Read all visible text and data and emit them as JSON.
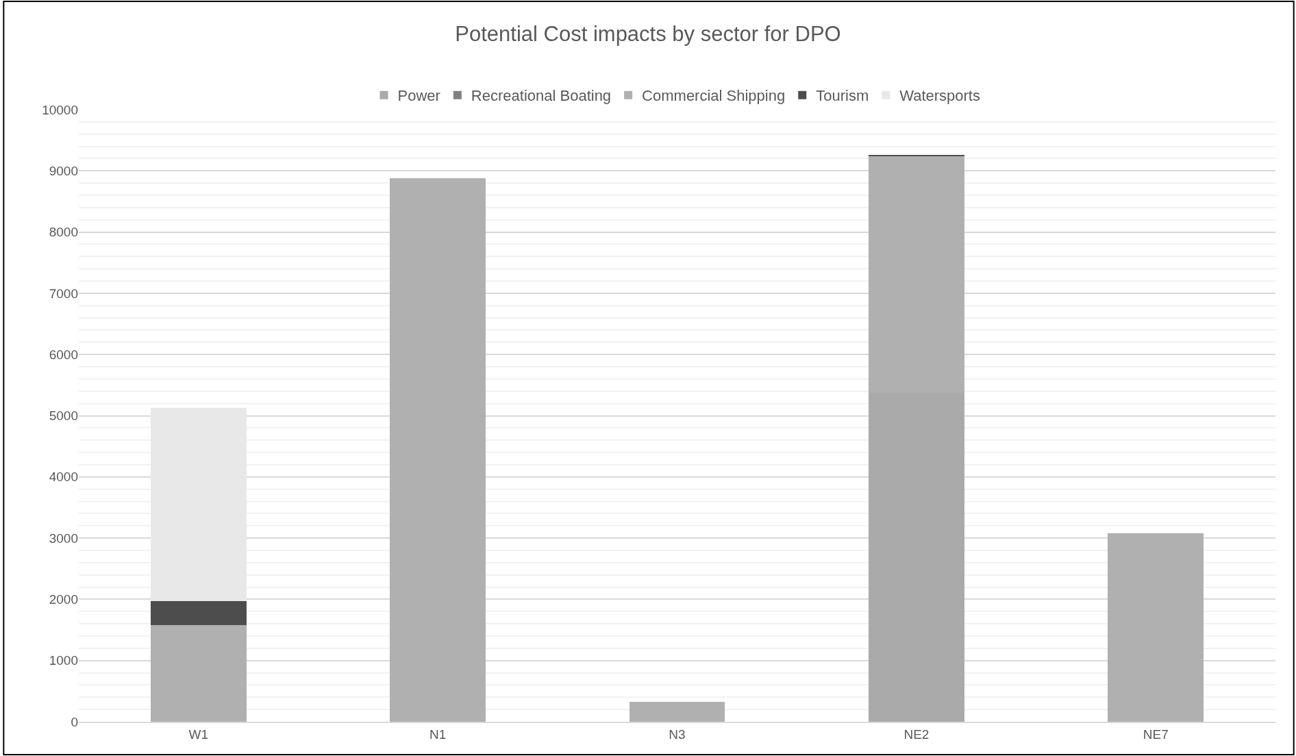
{
  "chart_data": {
    "type": "bar",
    "title": "Potential Cost impacts by sector for DPO",
    "stacked": true,
    "legend": "top",
    "grid": "y",
    "categories": [
      "W1",
      "N1",
      "N3",
      "NE2",
      "NE7"
    ],
    "series": [
      {
        "name": "Power",
        "color": "#aaaaaa",
        "values": [
          0,
          0,
          0,
          5380,
          0
        ]
      },
      {
        "name": "Recreational Boating",
        "color": "#808080",
        "values": [
          0,
          0,
          0,
          0,
          0
        ]
      },
      {
        "name": "Commercial Shipping",
        "color": "#b0b0b0",
        "values": [
          1580,
          8880,
          320,
          3860,
          3080
        ]
      },
      {
        "name": "Tourism",
        "color": "#4d4d4d",
        "values": [
          390,
          0,
          0,
          20,
          0
        ]
      },
      {
        "name": "Watersports",
        "color": "#e8e8e8",
        "values": [
          3160,
          0,
          0,
          0,
          0
        ]
      }
    ],
    "ylim": [
      0,
      10000
    ],
    "yticks": [
      0,
      1000,
      2000,
      3000,
      4000,
      5000,
      6000,
      7000,
      8000,
      9000,
      10000
    ]
  }
}
